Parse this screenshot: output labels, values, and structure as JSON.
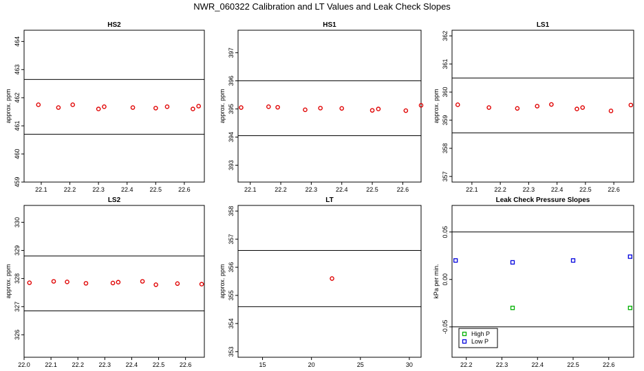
{
  "title": "NWR_060322  Calibration and LT Values and Leak Check Slopes",
  "chart_data": [
    {
      "type": "scatter",
      "title": "HS2",
      "ylabel": "approx. ppm",
      "xlim": [
        22.04,
        22.67
      ],
      "ylim": [
        459.0,
        464.4
      ],
      "xticks": [
        "22.1",
        "22.2",
        "22.3",
        "22.4",
        "22.5",
        "22.6"
      ],
      "yticks": [
        "459",
        "460",
        "461",
        "462",
        "463",
        "464"
      ],
      "hlines": [
        460.7,
        462.65
      ],
      "series": [
        {
          "color": "#e00000",
          "marker": "circle",
          "points": [
            [
              22.09,
              461.75
            ],
            [
              22.16,
              461.65
            ],
            [
              22.21,
              461.75
            ],
            [
              22.3,
              461.6
            ],
            [
              22.32,
              461.68
            ],
            [
              22.42,
              461.65
            ],
            [
              22.5,
              461.63
            ],
            [
              22.54,
              461.68
            ],
            [
              22.63,
              461.6
            ],
            [
              22.65,
              461.7
            ]
          ]
        }
      ]
    },
    {
      "type": "scatter",
      "title": "HS1",
      "ylabel": "approx. ppm",
      "xlim": [
        22.06,
        22.66
      ],
      "ylim": [
        392.4,
        397.8
      ],
      "xticks": [
        "22.1",
        "22.2",
        "22.3",
        "22.4",
        "22.5",
        "22.6"
      ],
      "yticks": [
        "393",
        "394",
        "395",
        "396",
        "397"
      ],
      "hlines": [
        394.05,
        396.0
      ],
      "series": [
        {
          "color": "#e00000",
          "marker": "circle",
          "points": [
            [
              22.07,
              395.05
            ],
            [
              22.16,
              395.08
            ],
            [
              22.19,
              395.06
            ],
            [
              22.28,
              394.97
            ],
            [
              22.33,
              395.03
            ],
            [
              22.4,
              395.02
            ],
            [
              22.5,
              394.95
            ],
            [
              22.52,
              395.0
            ],
            [
              22.61,
              394.94
            ],
            [
              22.66,
              395.13
            ]
          ]
        }
      ]
    },
    {
      "type": "scatter",
      "title": "LS1",
      "ylabel": "approx. ppm",
      "xlim": [
        22.03,
        22.67
      ],
      "ylim": [
        356.8,
        362.2
      ],
      "xticks": [
        "22.1",
        "22.2",
        "22.3",
        "22.4",
        "22.5",
        "22.6"
      ],
      "yticks": [
        "357",
        "358",
        "359",
        "360",
        "361",
        "362"
      ],
      "hlines": [
        358.55,
        360.5
      ],
      "series": [
        {
          "color": "#e00000",
          "marker": "circle",
          "points": [
            [
              22.05,
              359.55
            ],
            [
              22.16,
              359.45
            ],
            [
              22.26,
              359.42
            ],
            [
              22.33,
              359.5
            ],
            [
              22.38,
              359.56
            ],
            [
              22.47,
              359.4
            ],
            [
              22.49,
              359.45
            ],
            [
              22.59,
              359.33
            ],
            [
              22.66,
              359.54
            ]
          ]
        }
      ]
    },
    {
      "type": "scatter",
      "title": "LS2",
      "ylabel": "approx. ppm",
      "xlim": [
        22.0,
        22.67
      ],
      "ylim": [
        325.2,
        330.6
      ],
      "xticks": [
        "22.0",
        "22.1",
        "22.2",
        "22.3",
        "22.4",
        "22.5",
        "22.6"
      ],
      "yticks": [
        "326",
        "327",
        "328",
        "329",
        "330"
      ],
      "hlines": [
        326.85,
        328.8
      ],
      "series": [
        {
          "color": "#e00000",
          "marker": "circle",
          "points": [
            [
              22.02,
              327.85
            ],
            [
              22.11,
              327.9
            ],
            [
              22.16,
              327.88
            ],
            [
              22.23,
              327.83
            ],
            [
              22.33,
              327.84
            ],
            [
              22.35,
              327.87
            ],
            [
              22.44,
              327.9
            ],
            [
              22.49,
              327.78
            ],
            [
              22.57,
              327.82
            ],
            [
              22.66,
              327.8
            ]
          ]
        }
      ]
    },
    {
      "type": "scatter",
      "title": "LT",
      "ylabel": "approx. ppm",
      "xlim": [
        12.5,
        31.2
      ],
      "ylim": [
        352.8,
        358.2
      ],
      "xticks": [
        "15",
        "20",
        "25",
        "30"
      ],
      "yticks": [
        "353",
        "354",
        "355",
        "356",
        "357",
        "358"
      ],
      "hlines": [
        354.6,
        356.6
      ],
      "series": [
        {
          "color": "#e00000",
          "marker": "circle",
          "points": [
            [
              22.1,
              355.6
            ]
          ]
        }
      ]
    },
    {
      "type": "scatter",
      "title": "Leak Check Pressure Slopes",
      "ylabel": "kPa per min.",
      "xlim": [
        22.16,
        22.67
      ],
      "ylim": [
        -0.082,
        0.078
      ],
      "xticks": [
        "22.2",
        "22.3",
        "22.4",
        "22.5",
        "22.6"
      ],
      "yticks": [
        "-0.05",
        "0.00",
        "0.05"
      ],
      "hlines": [
        -0.05,
        0.05
      ],
      "legend": {
        "position": "bottom-left",
        "entries": [
          {
            "label": "High P",
            "color": "#00b000"
          },
          {
            "label": "Low P",
            "color": "#0000dd"
          }
        ]
      },
      "series": [
        {
          "name": "High P",
          "color": "#00b000",
          "marker": "square",
          "points": [
            [
              22.33,
              -0.03
            ],
            [
              22.66,
              -0.03
            ]
          ]
        },
        {
          "name": "Low P",
          "color": "#0000dd",
          "marker": "square",
          "points": [
            [
              22.17,
              0.02
            ],
            [
              22.33,
              0.018
            ],
            [
              22.5,
              0.02
            ],
            [
              22.66,
              0.024
            ]
          ]
        }
      ]
    }
  ]
}
